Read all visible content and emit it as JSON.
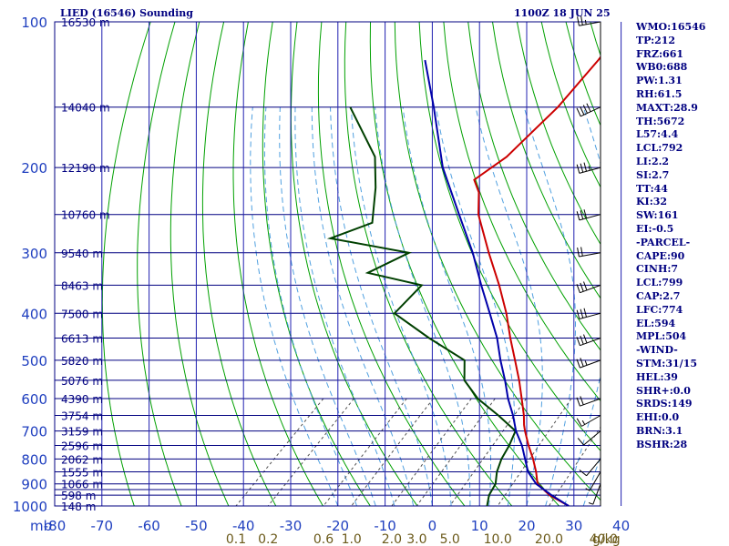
{
  "header": {
    "title": "LIED (16546) Sounding",
    "time": "1100Z 18 JUN 25"
  },
  "indices": [
    "WMO:16546",
    "TP:212",
    "FRZ:661",
    "WB0:688",
    "PW:1.31",
    "RH:61.5",
    "MAXT:28.9",
    "TH:5672",
    "L57:4.4",
    "LCL:792",
    "LI:2.2",
    "SI:2.7",
    "TT:44",
    "KI:32",
    "SW:161",
    "EI:-0.5",
    "-PARCEL-",
    "CAPE:90",
    "CINH:7",
    "LCL:799",
    "CAP:2.7",
    "LFC:774",
    "EL:594",
    "MPL:504",
    "-WIND-",
    "STM:31/15",
    "HEL:39",
    "SHR+:0.0",
    "SRDS:149",
    "EHI:0.0",
    "BRN:3.1",
    "BSHR:28"
  ],
  "colors": {
    "frame": "#000080",
    "pressure_label": "#1f3fbf",
    "isotherm": "#2020b0",
    "dry_adiabat": "#00a000",
    "moist_adiabat": "#50a0e0",
    "mixing_ratio": "#505050",
    "temperature": "#cc0000",
    "dewpoint": "#004000",
    "parcel": "#0000aa",
    "mixing_label": "#6b5a1a"
  },
  "chart_data": {
    "type": "line",
    "diagram": "skew-T log-p",
    "pressure_unit": "mb",
    "temp_unit": "C",
    "pressure_ticks": [
      100,
      200,
      300,
      400,
      500,
      600,
      700,
      800,
      900,
      1000
    ],
    "pressure_lines": [
      100,
      150,
      200,
      250,
      300,
      350,
      400,
      450,
      500,
      550,
      600,
      650,
      700,
      750,
      800,
      850,
      900,
      925,
      950,
      1000
    ],
    "temp_ticks": [
      -80,
      -70,
      -60,
      -50,
      -40,
      -30,
      -20,
      -10,
      0,
      10,
      20,
      30,
      40
    ],
    "mixing_ratio_labels": [
      "0.1",
      "0.2",
      "0.6",
      "1.0",
      "2.0",
      "3.0",
      "5.0",
      "10.0",
      "20.0",
      "40.0"
    ],
    "mixing_ratio_unit": "g/kg",
    "height_labels": [
      {
        "p": 100,
        "text": "16530 m"
      },
      {
        "p": 150,
        "text": "14040 m"
      },
      {
        "p": 200,
        "text": "12190 m"
      },
      {
        "p": 250,
        "text": "10760 m"
      },
      {
        "p": 300,
        "text": "9540 m"
      },
      {
        "p": 350,
        "text": "8463 m"
      },
      {
        "p": 400,
        "text": "7500 m"
      },
      {
        "p": 450,
        "text": "6613 m"
      },
      {
        "p": 500,
        "text": "5820 m"
      },
      {
        "p": 550,
        "text": "5076 m"
      },
      {
        "p": 600,
        "text": "4390 m"
      },
      {
        "p": 650,
        "text": "3754 m"
      },
      {
        "p": 700,
        "text": "3159 m"
      },
      {
        "p": 750,
        "text": "2596 m"
      },
      {
        "p": 800,
        "text": "2062 m"
      },
      {
        "p": 850,
        "text": "1555 m"
      },
      {
        "p": 900,
        "text": "1066 m"
      },
      {
        "p": 950,
        "text": "598 m"
      },
      {
        "p": 1000,
        "text": "148 m"
      }
    ],
    "series": [
      {
        "name": "temperature",
        "points": [
          [
            1000,
            28.9
          ],
          [
            950,
            22.5
          ],
          [
            900,
            17.5
          ],
          [
            850,
            14.6
          ],
          [
            800,
            11.2
          ],
          [
            750,
            7.3
          ],
          [
            700,
            3.4
          ],
          [
            680,
            1.9
          ],
          [
            650,
            -0.2
          ],
          [
            600,
            -4.3
          ],
          [
            550,
            -8.8
          ],
          [
            500,
            -14.0
          ],
          [
            450,
            -19.8
          ],
          [
            400,
            -26.0
          ],
          [
            350,
            -33.6
          ],
          [
            300,
            -42.8
          ],
          [
            250,
            -53.3
          ],
          [
            225,
            -58.0
          ],
          [
            212,
            -61.7
          ],
          [
            190,
            -59.8
          ],
          [
            180,
            -59.8
          ],
          [
            150,
            -59.7
          ],
          [
            120,
            -61.3
          ],
          [
            100,
            -63.3
          ]
        ]
      },
      {
        "name": "dewpoint",
        "points": [
          [
            1000,
            11.6
          ],
          [
            950,
            9.7
          ],
          [
            900,
            8.6
          ],
          [
            850,
            6.3
          ],
          [
            800,
            4.5
          ],
          [
            750,
            3.2
          ],
          [
            700,
            1.4
          ],
          [
            650,
            -5.6
          ],
          [
            600,
            -13.6
          ],
          [
            550,
            -20.4
          ],
          [
            500,
            -24.7
          ],
          [
            450,
            -37.0
          ],
          [
            400,
            -49.7
          ],
          [
            350,
            -50.0
          ],
          [
            330,
            -64.1
          ],
          [
            300,
            -59.7
          ],
          [
            280,
            -79.5
          ],
          [
            260,
            -74.0
          ],
          [
            220,
            -80.9
          ],
          [
            190,
            -87.7
          ],
          [
            150,
            -103.7
          ]
        ]
      },
      {
        "name": "parcel",
        "points": [
          [
            1000,
            28.9
          ],
          [
            950,
            22.9
          ],
          [
            900,
            17.2
          ],
          [
            850,
            12.9
          ],
          [
            800,
            9.5
          ],
          [
            750,
            5.9
          ],
          [
            700,
            1.5
          ],
          [
            650,
            -2.5
          ],
          [
            600,
            -7.2
          ],
          [
            550,
            -11.8
          ],
          [
            500,
            -17.1
          ],
          [
            450,
            -22.6
          ],
          [
            400,
            -29.5
          ],
          [
            350,
            -37.4
          ],
          [
            300,
            -46.2
          ],
          [
            250,
            -57.4
          ],
          [
            200,
            -71.0
          ],
          [
            150,
            -86.0
          ],
          [
            120,
            -98.0
          ]
        ]
      }
    ],
    "wind_barbs": [
      {
        "p": 100,
        "dir": 260,
        "spd": 25
      },
      {
        "p": 150,
        "dir": 245,
        "spd": 40
      },
      {
        "p": 200,
        "dir": 255,
        "spd": 35
      },
      {
        "p": 250,
        "dir": 255,
        "spd": 30
      },
      {
        "p": 300,
        "dir": 260,
        "spd": 20
      },
      {
        "p": 350,
        "dir": 250,
        "spd": 30
      },
      {
        "p": 400,
        "dir": 255,
        "spd": 30
      },
      {
        "p": 450,
        "dir": 250,
        "spd": 30
      },
      {
        "p": 500,
        "dir": 250,
        "spd": 25
      },
      {
        "p": 600,
        "dir": 250,
        "spd": 20
      },
      {
        "p": 650,
        "dir": 240,
        "spd": 15
      },
      {
        "p": 700,
        "dir": 230,
        "spd": 10
      },
      {
        "p": 800,
        "dir": 220,
        "spd": 10
      },
      {
        "p": 850,
        "dir": 210,
        "spd": 5
      },
      {
        "p": 900,
        "dir": 200,
        "spd": 5
      }
    ]
  }
}
